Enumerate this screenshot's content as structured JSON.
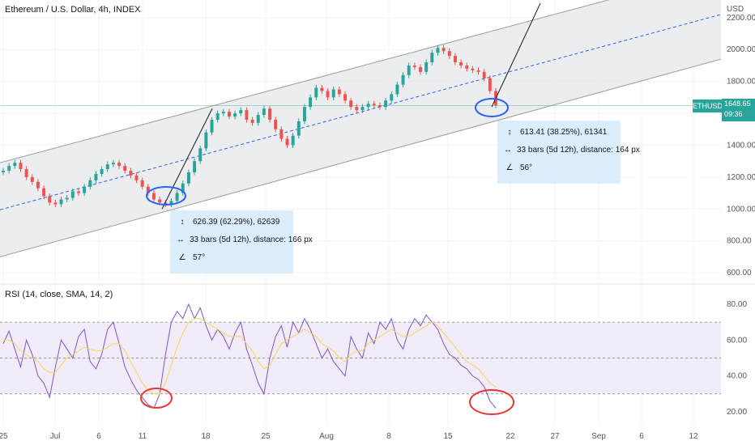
{
  "header": {
    "title": "Ethereum / U.S. Dollar, 4h, INDEX",
    "currency_label": "USD"
  },
  "price_badge": {
    "symbol": "ETHUSD",
    "price": "1648.65",
    "countdown": "09:36",
    "color": "#26a69a"
  },
  "tooltips": [
    {
      "range": "626.39 (62.29%), 62639",
      "bars": "33 bars (5d 12h), distance: 166 px",
      "angle": "57°"
    },
    {
      "range": "613.41 (38.25%), 61341",
      "bars": "33 bars (5d 12h), distance: 164 px",
      "angle": "56°"
    }
  ],
  "rsi_panel": {
    "title": "RSI (14, close, SMA, 14, 2)",
    "y_ticks": [
      "80.00",
      "60.00",
      "40.00",
      "20.00"
    ],
    "upper_band": 70,
    "lower_band": 30,
    "middle_band": 50
  },
  "chart_data": [
    {
      "type": "line",
      "title": "Ethereum / U.S. Dollar, 4h, INDEX",
      "x_tick_labels": [
        "25",
        "Jul",
        "6",
        "11",
        "18",
        "25",
        "Aug",
        "8",
        "15",
        "22",
        "27",
        "Sep",
        "6",
        "12"
      ],
      "y_tick_labels": [
        "2200.00",
        "2000.00",
        "1800.00",
        "1600.00",
        "1400.00",
        "1200.00",
        "1000.00",
        "800.00",
        "600.00"
      ],
      "ylim": [
        560,
        2260
      ],
      "series": [
        {
          "values": [
            1240,
            1270,
            1290,
            1250,
            1200,
            1170,
            1130,
            1080,
            1040,
            1030,
            1060,
            1070,
            1110,
            1100,
            1140,
            1180,
            1220,
            1250,
            1280,
            1290,
            1270,
            1240,
            1210,
            1180,
            1140,
            1100,
            1060,
            1040,
            1030,
            1050,
            1100,
            1160,
            1230,
            1300,
            1380,
            1480,
            1560,
            1600,
            1610,
            1580,
            1600,
            1620,
            1560,
            1540,
            1590,
            1630,
            1560,
            1500,
            1440,
            1400,
            1460,
            1550,
            1640,
            1700,
            1760,
            1740,
            1700,
            1750,
            1720,
            1680,
            1640,
            1620,
            1640,
            1660,
            1650,
            1640,
            1680,
            1720,
            1780,
            1840,
            1900,
            1890,
            1860,
            1920,
            1980,
            2010,
            1990,
            1960,
            1920,
            1900,
            1880,
            1870,
            1860,
            1820,
            1740,
            1650
          ]
        }
      ],
      "annotations": {
        "channel_upper_start": 1290,
        "channel_upper_end": 2500,
        "channel_lower_start": 700,
        "channel_lower_end": 1940,
        "move_1": "626.39 (62.29%), 62639",
        "move_2": "613.41 (38.25%), 61341"
      }
    },
    {
      "type": "line",
      "title": "RSI (14, close, SMA, 14, 2)",
      "y_tick_labels": [
        "80.00",
        "60.00",
        "40.00",
        "20.00"
      ],
      "ylim": [
        15,
        85
      ],
      "series": [
        {
          "name": "RSI",
          "values": [
            58,
            65,
            55,
            45,
            60,
            52,
            40,
            36,
            28,
            45,
            60,
            55,
            50,
            62,
            66,
            48,
            44,
            52,
            66,
            70,
            58,
            45,
            38,
            32,
            28,
            24,
            22,
            30,
            52,
            70,
            76,
            72,
            80,
            72,
            78,
            68,
            60,
            66,
            62,
            55,
            64,
            70,
            55,
            46,
            36,
            30,
            50,
            62,
            68,
            56,
            70,
            64,
            72,
            66,
            58,
            50,
            55,
            48,
            44,
            40,
            62,
            55,
            50,
            64,
            58,
            70,
            66,
            72,
            60,
            55,
            66,
            72,
            68,
            74,
            70,
            66,
            58,
            52,
            50,
            46,
            44,
            40,
            38,
            34,
            26,
            22
          ]
        },
        {
          "name": "SMA",
          "values": [
            60,
            60,
            58,
            54,
            52,
            50,
            48,
            44,
            42,
            42,
            46,
            50,
            52,
            54,
            56,
            55,
            54,
            54,
            56,
            58,
            58,
            54,
            48,
            42,
            36,
            32,
            30,
            30,
            36,
            46,
            56,
            64,
            70,
            72,
            72,
            70,
            68,
            66,
            64,
            62,
            62,
            62,
            58,
            54,
            48,
            44,
            46,
            52,
            58,
            60,
            62,
            64,
            66,
            64,
            62,
            58,
            56,
            54,
            50,
            48,
            52,
            54,
            54,
            58,
            60,
            62,
            64,
            66,
            64,
            62,
            62,
            64,
            66,
            68,
            70,
            68,
            64,
            60,
            56,
            52,
            48,
            46,
            44,
            40,
            36,
            34
          ]
        }
      ]
    }
  ],
  "colors": {
    "up_candle": "#26a69a",
    "down_candle": "#ef5350",
    "channel_fill": "#e6e7e8",
    "midline": "#2962ff",
    "rsi_line": "#7e57c2",
    "rsi_sma": "#f5d65e",
    "rsi_band_fill": "#f1ebfa",
    "highlight_blue": "#2962ff",
    "highlight_red": "#e53935"
  }
}
